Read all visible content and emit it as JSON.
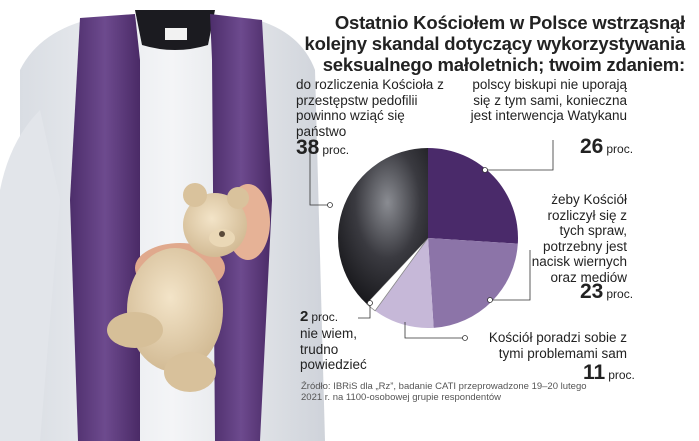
{
  "headline": "Ostatnio Kościołem w Polsce wstrząsnął kolejny skandal dotyczący wykorzystywania seksualnego małoletnich; twoim zdaniem:",
  "chart_data": {
    "type": "pie",
    "title": "Ostatnio Kościołem w Polsce wstrząsnął kolejny skandal dotyczący wykorzystywania seksualnego małoletnich; twoim zdaniem:",
    "slices": [
      {
        "label": "polscy biskupi nie uporają się z tym sami, konieczna jest interwencja Watykanu",
        "value": 26,
        "value_text": "26",
        "unit": "proc.",
        "color": "#4a2a6a"
      },
      {
        "label": "żeby Kościół rozliczył się z tych spraw, potrzebny jest nacisk wiernych oraz mediów",
        "value": 23,
        "value_text": "23",
        "unit": "proc.",
        "color": "#8c74a8"
      },
      {
        "label": "Kościół poradzi sobie z tymi problemami sam",
        "value": 11,
        "value_text": "11",
        "unit": "proc.",
        "color": "#c6b8d8"
      },
      {
        "label": "nie wiem, trudno powiedzieć",
        "value": 2,
        "value_text": "2",
        "unit": "proc.",
        "color": "#ffffff"
      },
      {
        "label": "do rozliczenia Kościoła z przestępstw pedofilii powinno wziąć się państwo",
        "value": 38,
        "value_text": "38",
        "unit": "proc.",
        "color": "#2a2a2e"
      }
    ]
  },
  "labels": {
    "l_state": "do rozliczenia Kościoła z przestępstw pedofilii powinno wziąć się państwo",
    "l_vatican": "polscy biskupi nie uporają się z tym sami, konieczna jest interwencja Watykanu",
    "l_faithful": "żeby Kościół rozliczył się z tych spraw, potrzebny jest nacisk wiernych oraz mediów",
    "l_self": "Kościół poradzi sobie z tymi problemami sam",
    "l_dunno": "nie wiem, trudno powiedzieć"
  },
  "source": "Źródło: IBRiS dla „Rz”, badanie CATI przeprowadzone 19–20 lutego 2021 r. na 1100-osobowej grupie respondentów"
}
